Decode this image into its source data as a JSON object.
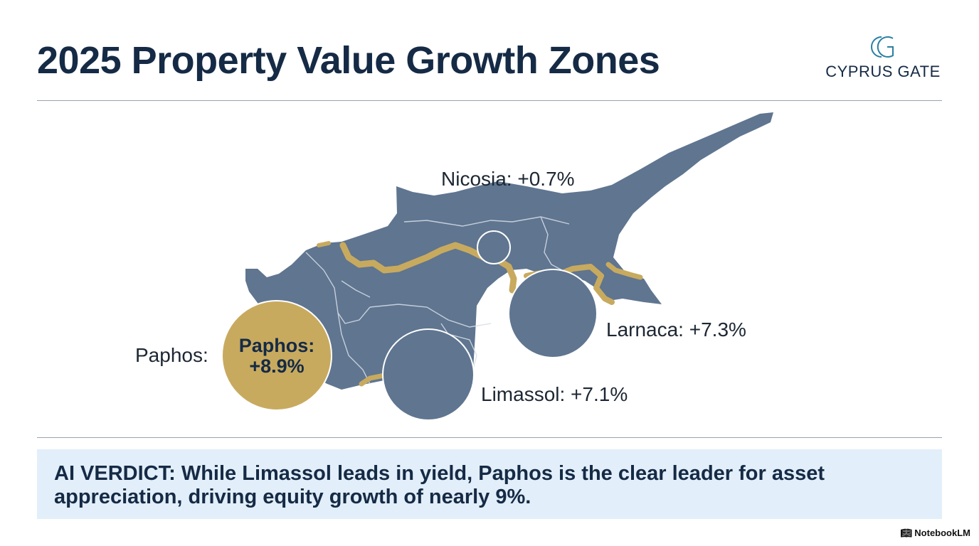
{
  "header": {
    "title": "2025 Property Value Growth Zones",
    "logo_monogram": "CG",
    "logo_text": "CYPRUS GATE"
  },
  "map": {
    "land_color": "#5f7590",
    "accent_color": "#c8aa5f",
    "zones": [
      {
        "name": "Nicosia",
        "label": "Nicosia: +0.7%",
        "growth_pct": 0.7,
        "highlight": false
      },
      {
        "name": "Larnaca",
        "label": "Larnaca: +7.3%",
        "growth_pct": 7.3,
        "highlight": false
      },
      {
        "name": "Limassol",
        "label": "Limassol: +7.1%",
        "growth_pct": 7.1,
        "highlight": false
      },
      {
        "name": "Paphos",
        "label": "Paphos:",
        "bubble_label": "Paphos: +8.9%",
        "growth_pct": 8.9,
        "highlight": true
      }
    ]
  },
  "verdict": {
    "text": "AI VERDICT: While Limassol leads in yield, Paphos is the clear leader for asset appreciation, driving equity growth of nearly 9%."
  },
  "footer": {
    "brand": "NotebookLM",
    "brand_icon": "notebooklm-icon"
  }
}
